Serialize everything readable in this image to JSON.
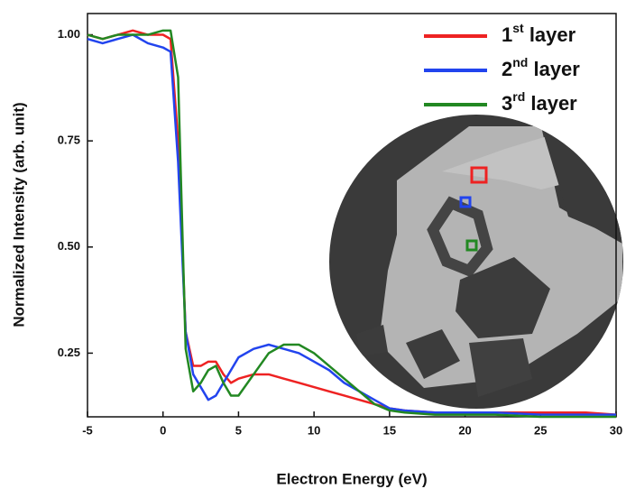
{
  "chart_data": {
    "type": "line",
    "x_label": "Electron Energy (eV)",
    "y_label": "Normalized Intensity (arb. unit)",
    "x": [
      -5,
      -4,
      -3,
      -2,
      -1,
      0,
      0.5,
      1,
      1.5,
      2,
      2.5,
      3,
      3.5,
      4,
      4.5,
      5,
      6,
      7,
      8,
      9,
      10,
      11,
      12,
      13,
      14,
      15,
      16,
      18,
      20,
      22,
      25,
      28,
      30
    ],
    "series": [
      {
        "name": "1st layer",
        "color": "#ee2222",
        "values": [
          1.0,
          0.99,
          1.0,
          1.01,
          1.0,
          1.0,
          0.99,
          0.75,
          0.3,
          0.22,
          0.22,
          0.23,
          0.23,
          0.2,
          0.18,
          0.19,
          0.2,
          0.2,
          0.19,
          0.18,
          0.17,
          0.16,
          0.15,
          0.14,
          0.13,
          0.12,
          0.115,
          0.11,
          0.11,
          0.11,
          0.11,
          0.11,
          0.105
        ]
      },
      {
        "name": "2nd layer",
        "color": "#2244ee",
        "values": [
          0.99,
          0.98,
          0.99,
          1.0,
          0.98,
          0.97,
          0.96,
          0.7,
          0.3,
          0.2,
          0.17,
          0.14,
          0.15,
          0.18,
          0.21,
          0.24,
          0.26,
          0.27,
          0.26,
          0.25,
          0.23,
          0.21,
          0.18,
          0.16,
          0.14,
          0.12,
          0.115,
          0.11,
          0.11,
          0.11,
          0.105,
          0.105,
          0.105
        ]
      },
      {
        "name": "3rd layer",
        "color": "#228822",
        "values": [
          1.0,
          0.99,
          1.0,
          1.0,
          1.0,
          1.01,
          1.01,
          0.9,
          0.26,
          0.16,
          0.18,
          0.21,
          0.22,
          0.18,
          0.15,
          0.15,
          0.2,
          0.25,
          0.27,
          0.27,
          0.25,
          0.22,
          0.19,
          0.16,
          0.13,
          0.115,
          0.11,
          0.105,
          0.105,
          0.105,
          0.1,
          0.1,
          0.1
        ]
      }
    ],
    "xlim": [
      -5,
      30
    ],
    "xticks": [
      -5,
      0,
      5,
      10,
      15,
      20,
      25,
      30
    ],
    "ylim": [
      0.1,
      1.05
    ],
    "yticks": [
      0.25,
      {
        "value": 0.5,
        "label": "0.50"
      },
      0.75,
      {
        "value": 1,
        "label": "1.00"
      }
    ],
    "legend": "upper right"
  }
}
